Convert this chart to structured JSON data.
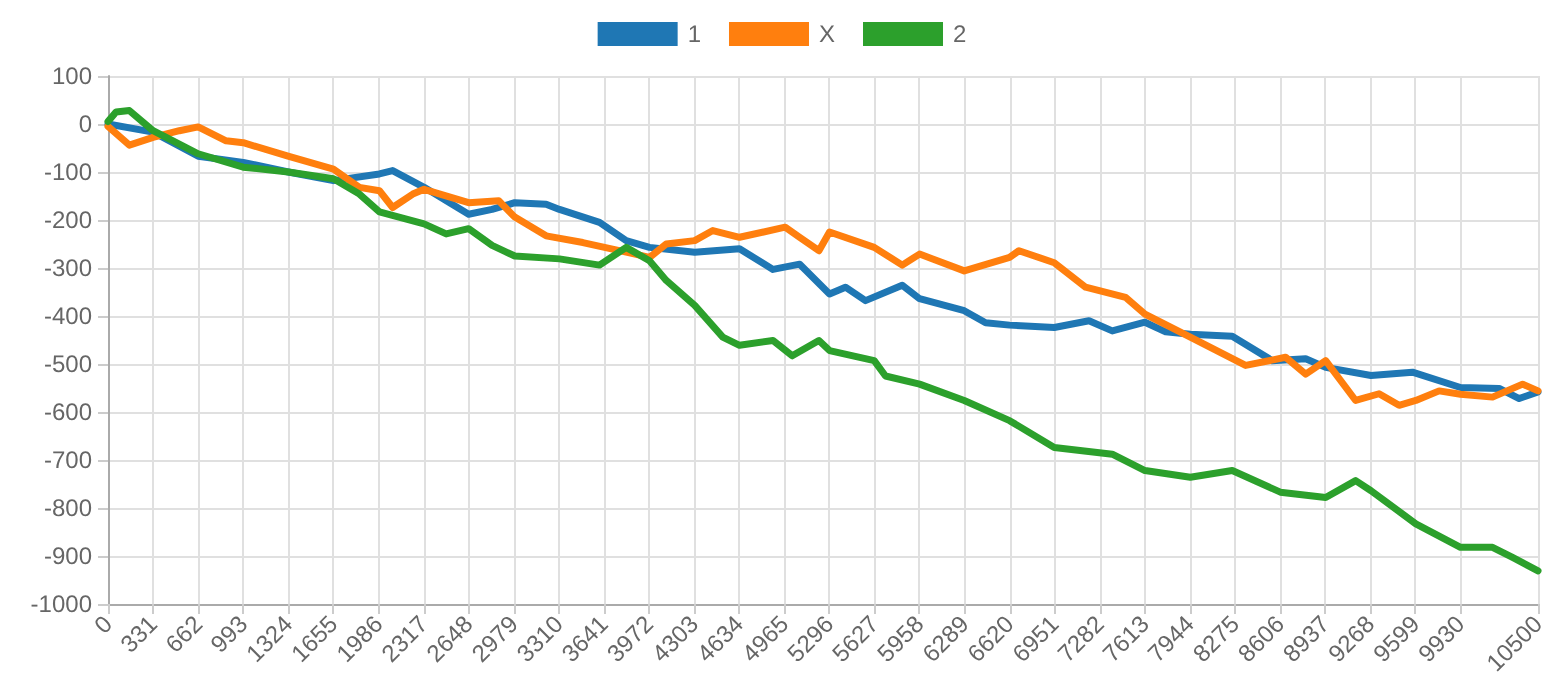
{
  "chart_data": {
    "type": "line",
    "legend": "top",
    "grid": true,
    "marker": "none",
    "line_style": "solid",
    "xlim": [
      0,
      10500
    ],
    "xticks": [
      0,
      331,
      662,
      993,
      1324,
      1655,
      1986,
      2317,
      2648,
      2979,
      3310,
      3641,
      3972,
      4303,
      4634,
      4965,
      5296,
      5627,
      5958,
      6289,
      6620,
      6951,
      7282,
      7613,
      7944,
      8275,
      8606,
      8937,
      9268,
      9599,
      9930,
      10500
    ],
    "ylim": [
      -1000,
      100
    ],
    "yticks": [
      -1000,
      -900,
      -800,
      -700,
      -600,
      -500,
      -400,
      -300,
      -200,
      -100,
      0,
      100
    ],
    "series": [
      {
        "name": "1",
        "color": "#1f77b4",
        "x": [
          0,
          331,
          662,
          993,
          1324,
          1655,
          1993,
          2090,
          2321,
          2648,
          2820,
          2987,
          3217,
          3315,
          3609,
          3805,
          3976,
          4308,
          4637,
          4883,
          5079,
          5298,
          5415,
          5562,
          5832,
          5959,
          6287,
          6444,
          6620,
          6948,
          7203,
          7374,
          7614,
          7766,
          7947,
          8255,
          8549,
          8794,
          8941,
          9274,
          9578,
          9931,
          10215,
          10362,
          10500
        ],
        "values": [
          0,
          -17,
          -67,
          -80,
          -100,
          -118,
          -104,
          -97,
          -132,
          -188,
          -178,
          -164,
          -167,
          -178,
          -205,
          -243,
          -257,
          -267,
          -260,
          -303,
          -292,
          -354,
          -340,
          -368,
          -336,
          -364,
          -389,
          -414,
          -419,
          -424,
          -410,
          -431,
          -413,
          -433,
          -438,
          -442,
          -493,
          -489,
          -507,
          -524,
          -517,
          -549,
          -551,
          -572,
          -558
        ]
      },
      {
        "name": "X",
        "color": "#ff7f0e",
        "x": [
          0,
          157,
          331,
          524,
          662,
          867,
          993,
          1322,
          1655,
          1846,
          1993,
          2090,
          2238,
          2321,
          2648,
          2869,
          2987,
          3217,
          3487,
          3805,
          3976,
          4099,
          4308,
          4441,
          4637,
          4972,
          5079,
          5220,
          5298,
          5626,
          5832,
          5959,
          6287,
          6620,
          6689,
          6948,
          7178,
          7472,
          7614,
          7947,
          8353,
          8647,
          8794,
          8941,
          9161,
          9333,
          9480,
          9603,
          9774,
          9931,
          10166,
          10387,
          10500
        ],
        "values": [
          -5,
          -44,
          -28,
          -14,
          -6,
          -35,
          -39,
          -67,
          -94,
          -132,
          -139,
          -174,
          -146,
          -136,
          -164,
          -160,
          -194,
          -233,
          -247,
          -267,
          -278,
          -250,
          -243,
          -222,
          -236,
          -215,
          -236,
          -264,
          -225,
          -257,
          -294,
          -271,
          -306,
          -278,
          -264,
          -289,
          -340,
          -361,
          -396,
          -444,
          -503,
          -486,
          -521,
          -493,
          -576,
          -562,
          -586,
          -576,
          -556,
          -563,
          -569,
          -542,
          -556
        ]
      },
      {
        "name": "2",
        "color": "#2ca02c",
        "x": [
          0,
          59,
          157,
          331,
          662,
          993,
          1324,
          1655,
          1846,
          1993,
          2321,
          2483,
          2648,
          2820,
          2987,
          3315,
          3609,
          3805,
          3976,
          4099,
          4308,
          4514,
          4637,
          4883,
          5024,
          5220,
          5298,
          5626,
          5709,
          5959,
          6287,
          6620,
          6948,
          7374,
          7614,
          7947,
          8255,
          8608,
          8941,
          9161,
          9274,
          9603,
          9931,
          10166,
          10313,
          10500
        ],
        "values": [
          5,
          25,
          28,
          -14,
          -62,
          -90,
          -100,
          -114,
          -146,
          -183,
          -208,
          -229,
          -218,
          -253,
          -275,
          -281,
          -294,
          -257,
          -285,
          -326,
          -378,
          -444,
          -461,
          -451,
          -483,
          -451,
          -472,
          -493,
          -525,
          -542,
          -576,
          -618,
          -674,
          -688,
          -722,
          -736,
          -722,
          -767,
          -778,
          -743,
          -764,
          -833,
          -882,
          -882,
          -903,
          -931
        ]
      }
    ]
  }
}
